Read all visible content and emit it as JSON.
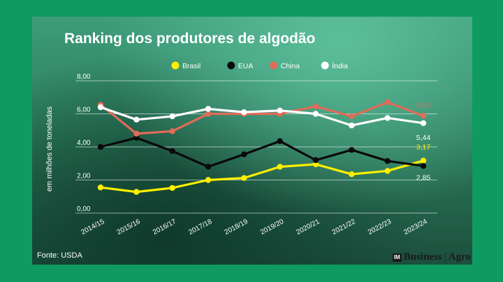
{
  "chart_data": {
    "type": "line",
    "title": "Ranking dos produtores de algodão",
    "ylabel": "em milhões de toneladas",
    "xlabel": "",
    "source": "Fonte: USDA",
    "brand": {
      "mark": "IM",
      "name": "Business",
      "suffix": "Agro"
    },
    "categories": [
      "2014/15",
      "2015/16",
      "2016/17",
      "2017/18",
      "2018/19",
      "2019/20",
      "2020/21",
      "2021/22",
      "2022/23",
      "2023/24"
    ],
    "ylim": [
      0,
      8
    ],
    "yticks": [
      "0,00",
      "2,00",
      "4,00",
      "6,00",
      "8,00"
    ],
    "grid": true,
    "legend_position": "top",
    "series": [
      {
        "name": "Brasil",
        "color": "#ffef00",
        "values": [
          1.55,
          1.28,
          1.52,
          2.0,
          2.12,
          2.8,
          2.95,
          2.35,
          2.55,
          3.17
        ],
        "end_label": "3,17"
      },
      {
        "name": "EUA",
        "color": "#0a0a0a",
        "values": [
          4.0,
          4.55,
          3.75,
          2.8,
          3.55,
          4.35,
          3.2,
          3.82,
          3.15,
          2.85
        ],
        "end_label": "2,85"
      },
      {
        "name": "China",
        "color": "#e06b58",
        "values": [
          6.55,
          4.8,
          4.95,
          6.0,
          6.0,
          6.0,
          6.45,
          5.85,
          6.7,
          5.88
        ],
        "end_label": "5,88"
      },
      {
        "name": "Índia",
        "color": "#ffffff",
        "values": [
          6.4,
          5.65,
          5.85,
          6.3,
          6.1,
          6.2,
          6.0,
          5.3,
          5.75,
          5.44
        ],
        "end_label": "5,44"
      }
    ]
  }
}
